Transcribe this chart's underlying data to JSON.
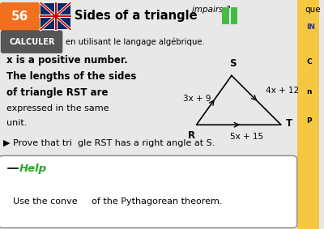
{
  "bg_color": "#e8e8e8",
  "title_num": "56",
  "title_num_bg": "#f07020",
  "title_text": "Sides of a triangle",
  "calculer_bg": "#555555",
  "calculer_text": "CALCULER",
  "subtitle": "en utilisant le langage algébrique.",
  "body_line1": "x is a positive number.",
  "body_line2": "The lengths of the sides",
  "body_line3": "of triangle RST are",
  "body_line4": "expressed in the same",
  "body_line5": "unit.",
  "prove_text": "▶ Prove that tri  gle RST has a right angle at S.",
  "help_title": "Help",
  "help_body": "Use the conve     of the Pythagorean theorem.",
  "top_right_text": "impairs ?",
  "top_far_right": "que",
  "right_strip_color": "#f5c842",
  "right_strip_labels": [
    "IN",
    "C",
    "n",
    "P"
  ],
  "label_RS": "3x + 9",
  "label_ST": "4x + 12",
  "label_RT": "5x + 15",
  "green_squares_color": "#44bb44"
}
